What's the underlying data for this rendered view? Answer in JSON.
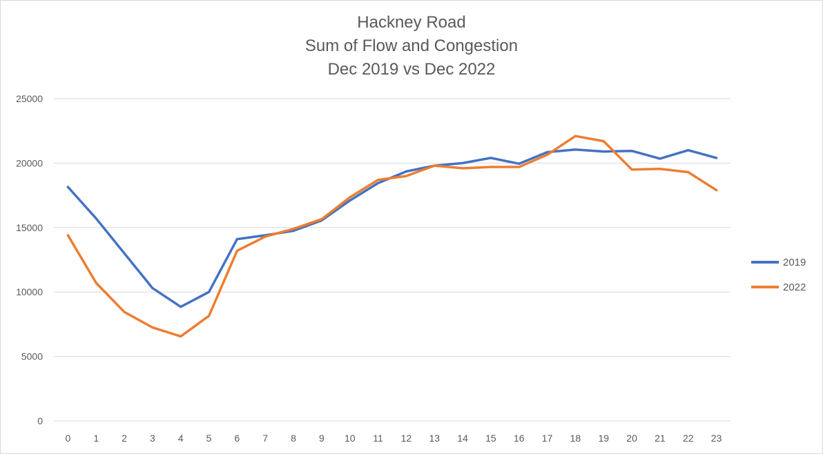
{
  "chart_data": {
    "type": "line",
    "title_lines": [
      "Hackney Road",
      "Sum of Flow and Congestion",
      "Dec 2019 vs Dec 2022"
    ],
    "x": [
      0,
      1,
      2,
      3,
      4,
      5,
      6,
      7,
      8,
      9,
      10,
      11,
      12,
      13,
      14,
      15,
      16,
      17,
      18,
      19,
      20,
      21,
      22,
      23
    ],
    "ylim": [
      0,
      25000
    ],
    "y_ticks": [
      0,
      5000,
      10000,
      15000,
      20000,
      25000
    ],
    "grid": true,
    "legend_position": "right",
    "series": [
      {
        "name": "2019",
        "color": "#4472C4",
        "values": [
          18150,
          15700,
          13000,
          10300,
          8850,
          10000,
          14100,
          14400,
          14750,
          15550,
          17100,
          18450,
          19350,
          19800,
          20000,
          20400,
          19950,
          20850,
          21050,
          20900,
          20950,
          20350,
          21000,
          20400
        ]
      },
      {
        "name": "2022",
        "color": "#ED7D31",
        "values": [
          14400,
          10700,
          8450,
          7250,
          6550,
          8150,
          13200,
          14300,
          14900,
          15650,
          17350,
          18700,
          19000,
          19800,
          19600,
          19700,
          19700,
          20650,
          22100,
          21700,
          19500,
          19550,
          19300,
          17900
        ]
      }
    ]
  }
}
